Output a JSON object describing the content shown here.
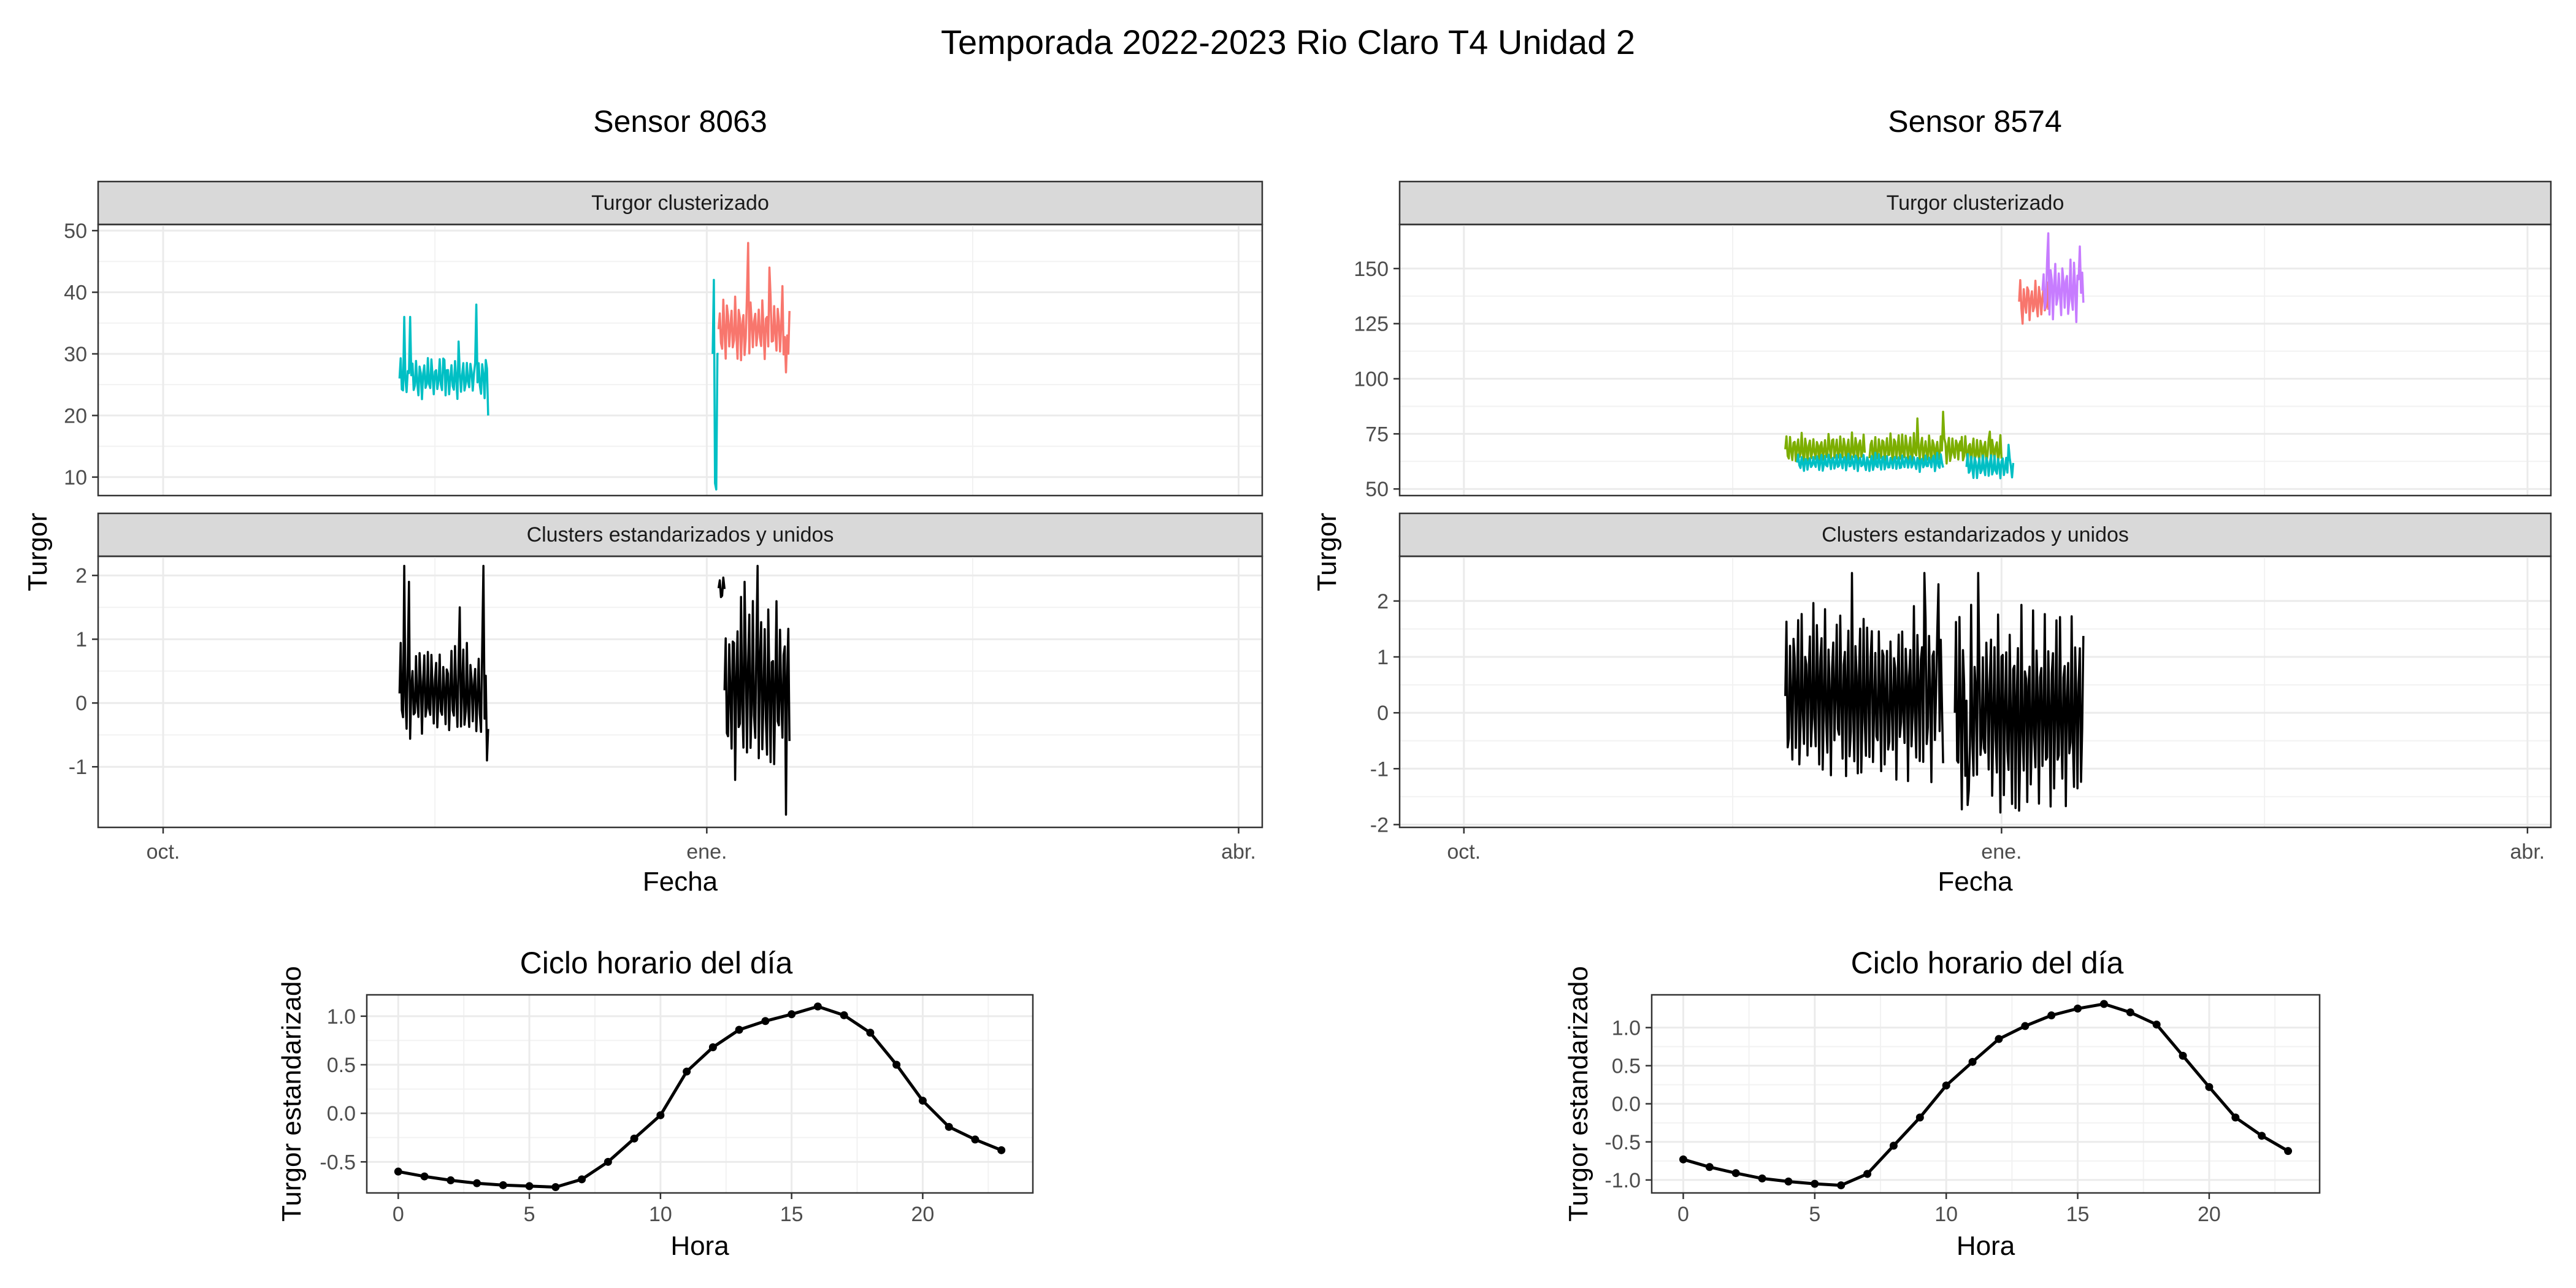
{
  "figure_title": "Temporada 2022-2023 Rio Claro T4 Unidad 2",
  "colors": {
    "cyan": "#00BFC4",
    "salmon": "#F8766D",
    "green": "#7CAE00",
    "purple": "#C77CFF",
    "line_black": "#000000",
    "strip_fill": "#D9D9D9",
    "grid": "#EBEBEB"
  },
  "chart_data": [
    {
      "type": "line",
      "title": "Sensor 8063",
      "xlabel": "Fecha",
      "ylabel": "Turgor",
      "x_axis": {
        "type": "date",
        "range": [
          "2022-09-20",
          "2023-04-05"
        ],
        "ticks": [
          "2022-10-01",
          "2023-01-01",
          "2023-04-01"
        ],
        "tick_labels": [
          "oct.",
          "ene.",
          "abr."
        ]
      },
      "panels": [
        {
          "strip": "Turgor clusterizado",
          "ylim": [
            7,
            51
          ],
          "yticks": [
            10,
            20,
            30,
            40,
            50
          ],
          "series": [
            {
              "color": "cyan",
              "start": "2022-11-10",
              "end": "2022-11-25",
              "level": 26,
              "amp": 2.8,
              "spikes": [
                [
                  0.05,
                  36
                ],
                [
                  0.12,
                  36
                ],
                [
                  0.5,
                  29
                ],
                [
                  0.66,
                  32
                ],
                [
                  0.86,
                  38
                ],
                [
                  0.97,
                  29
                ],
                [
                  1.0,
                  20
                ]
              ]
            },
            {
              "color": "salmon",
              "start": "2023-01-03",
              "end": "2023-01-15",
              "level": 34,
              "amp": 4.5,
              "spikes": [
                [
                  0.42,
                  48
                ],
                [
                  0.72,
                  44
                ],
                [
                  0.9,
                  41
                ],
                [
                  0.95,
                  27
                ]
              ]
            },
            {
              "color": "cyan",
              "start": "2023-01-02",
              "end": "2023-01-03",
              "level": 30,
              "amp": 0,
              "spikes": [
                [
                  0.25,
                  42
                ],
                [
                  0.35,
                  9
                ],
                [
                  0.5,
                  8
                ]
              ]
            }
          ]
        },
        {
          "strip": "Clusters estandarizados y unidos",
          "ylim": [
            -1.95,
            2.3
          ],
          "yticks": [
            -1,
            0,
            1,
            2
          ],
          "series": [
            {
              "color": "line_black",
              "start": "2022-11-10",
              "end": "2022-11-25",
              "level": 0.15,
              "amp": 0.65,
              "spikes": [
                [
                  0.05,
                  2.15
                ],
                [
                  0.1,
                  1.9
                ],
                [
                  0.68,
                  1.5
                ],
                [
                  0.95,
                  2.15
                ],
                [
                  0.99,
                  -0.9
                ]
              ]
            },
            {
              "color": "line_black",
              "start": "2023-01-03",
              "end": "2023-01-04",
              "level": 1.8,
              "amp": 0.2,
              "spikes": []
            },
            {
              "color": "line_black",
              "start": "2023-01-04",
              "end": "2023-01-15",
              "level": 0.2,
              "amp": 1.2,
              "spikes": [
                [
                  0.5,
                  2.15
                ],
                [
                  0.3,
                  1.9
                ],
                [
                  0.95,
                  -1.75
                ]
              ]
            }
          ]
        }
      ],
      "hourly": {
        "title": "Ciclo horario del día",
        "xlabel": "Hora",
        "ylabel": "Turgor estandarizado",
        "xlim": [
          -1.2,
          24.2
        ],
        "xticks": [
          0,
          5,
          10,
          15,
          20
        ],
        "ylim": [
          -0.82,
          1.22
        ],
        "yticks": [
          -0.5,
          0.0,
          0.5,
          1.0
        ],
        "ytick_labels": [
          "-0.5",
          "0.0",
          "0.5",
          "1.0"
        ],
        "x": [
          0,
          1,
          2,
          3,
          4,
          5,
          6,
          7,
          8,
          9,
          10,
          11,
          12,
          13,
          14,
          15,
          16,
          17,
          18,
          19,
          20,
          21,
          22,
          23
        ],
        "y": [
          -0.6,
          -0.65,
          -0.69,
          -0.72,
          -0.74,
          -0.75,
          -0.76,
          -0.68,
          -0.5,
          -0.26,
          -0.02,
          0.43,
          0.68,
          0.86,
          0.95,
          1.02,
          1.1,
          1.01,
          0.83,
          0.5,
          0.13,
          -0.14,
          -0.27,
          -0.38
        ]
      }
    },
    {
      "type": "line",
      "title": "Sensor 8574",
      "xlabel": "Fecha",
      "ylabel": "Turgor",
      "x_axis": {
        "type": "date",
        "range": [
          "2022-09-20",
          "2023-04-05"
        ],
        "ticks": [
          "2022-10-01",
          "2023-01-01",
          "2023-04-01"
        ],
        "tick_labels": [
          "oct.",
          "ene.",
          "abr."
        ]
      },
      "panels": [
        {
          "strip": "Turgor clusterizado",
          "ylim": [
            47,
            170
          ],
          "yticks": [
            50,
            75,
            100,
            125,
            150
          ],
          "ytick_labels": [
            "50",
            "75",
            "100",
            "125",
            "150"
          ],
          "series": [
            {
              "color": "green",
              "start": "2022-11-25",
              "end": "2022-12-25",
              "level": 68,
              "amp": 6,
              "spikes": [
                [
                  0.9,
                  85
                ],
                [
                  0.75,
                  82
                ]
              ],
              "gaps": [
                0.47
              ]
            },
            {
              "color": "cyan",
              "start": "2022-11-27",
              "end": "2022-12-22",
              "level": 62,
              "amp": 3.5,
              "spikes": []
            },
            {
              "color": "green",
              "start": "2022-12-25",
              "end": "2023-01-01",
              "level": 67,
              "amp": 6,
              "spikes": [
                [
                  0.7,
                  76
                ]
              ]
            },
            {
              "color": "cyan",
              "start": "2022-12-26",
              "end": "2023-01-03",
              "level": 60,
              "amp": 5,
              "spikes": [
                [
                  0.9,
                  70
                ]
              ]
            },
            {
              "color": "salmon",
              "start": "2023-01-04",
              "end": "2023-01-09",
              "level": 135,
              "amp": 8,
              "spikes": [
                [
                  0.1,
                  125
                ],
                [
                  0.3,
                  140
                ]
              ]
            },
            {
              "color": "purple",
              "start": "2023-01-08",
              "end": "2023-01-15",
              "level": 140,
              "amp": 12,
              "spikes": [
                [
                  0.15,
                  166
                ],
                [
                  0.9,
                  160
                ]
              ]
            }
          ]
        },
        {
          "strip": "Clusters estandarizados y unidos",
          "ylim": [
            -2.05,
            2.8
          ],
          "yticks": [
            -2,
            -1,
            0,
            1,
            2
          ],
          "series": [
            {
              "color": "line_black",
              "start": "2022-11-25",
              "end": "2022-12-22",
              "level": 0.3,
              "amp": 1.3,
              "spikes": [
                [
                  0.42,
                  2.5
                ],
                [
                  0.88,
                  2.5
                ],
                [
                  0.97,
                  2.3
                ]
              ]
            },
            {
              "color": "line_black",
              "start": "2022-12-24",
              "end": "2023-01-15",
              "level": 0.0,
              "amp": 1.5,
              "spikes": [
                [
                  0.18,
                  2.5
                ],
                [
                  0.1,
                  -1.65
                ],
                [
                  0.5,
                  -1.75
                ]
              ]
            }
          ]
        }
      ],
      "hourly": {
        "title": "Ciclo horario del día",
        "xlabel": "Hora",
        "ylabel": "Turgor estandarizado",
        "xlim": [
          -1.2,
          24.2
        ],
        "xticks": [
          0,
          5,
          10,
          15,
          20
        ],
        "ylim": [
          -1.17,
          1.43
        ],
        "yticks": [
          -1.0,
          -0.5,
          0.0,
          0.5,
          1.0
        ],
        "ytick_labels": [
          "-1.0",
          "-0.5",
          "0.0",
          "0.5",
          "1.0"
        ],
        "x": [
          0,
          1,
          2,
          3,
          4,
          5,
          6,
          7,
          8,
          9,
          10,
          11,
          12,
          13,
          14,
          15,
          16,
          17,
          18,
          19,
          20,
          21,
          22,
          23
        ],
        "y": [
          -0.73,
          -0.83,
          -0.91,
          -0.98,
          -1.02,
          -1.05,
          -1.07,
          -0.92,
          -0.55,
          -0.18,
          0.24,
          0.55,
          0.85,
          1.02,
          1.16,
          1.25,
          1.31,
          1.2,
          1.04,
          0.63,
          0.22,
          -0.18,
          -0.42,
          -0.62
        ]
      }
    }
  ]
}
